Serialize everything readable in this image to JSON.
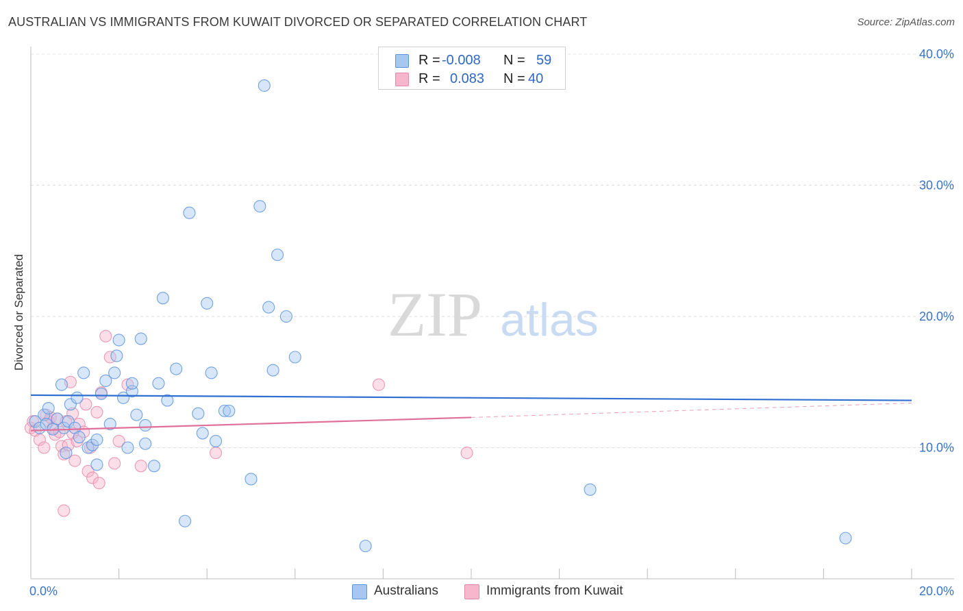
{
  "title": "AUSTRALIAN VS IMMIGRANTS FROM KUWAIT DIVORCED OR SEPARATED CORRELATION CHART",
  "source": "Source: ZipAtlas.com",
  "watermark": {
    "zip": "ZIP",
    "atlas": "atlas"
  },
  "legend": {
    "rows": [
      {
        "r_label": "R = ",
        "r_value": "-0.008",
        "n_label": "N = ",
        "n_value": "59",
        "color": "#a7c7f0"
      },
      {
        "r_label": "R = ",
        "r_value": "0.083",
        "n_label": "N = ",
        "n_value": "40",
        "color": "#f6b6cb"
      }
    ]
  },
  "bottom_legend": [
    {
      "label": "Australians",
      "color": "#a7c7f0"
    },
    {
      "label": "Immigrants from Kuwait",
      "color": "#f6b6cb"
    }
  ],
  "chart_data": {
    "type": "scatter",
    "title": "AUSTRALIAN VS IMMIGRANTS FROM KUWAIT DIVORCED OR SEPARATED CORRELATION CHART",
    "xlabel": "",
    "ylabel": "Divorced or Separated",
    "xlim": [
      0,
      20
    ],
    "ylim": [
      0,
      40
    ],
    "x_tick_labels": [
      "0.0%",
      "20.0%"
    ],
    "y_ticks": [
      10,
      20,
      30,
      40
    ],
    "y_tick_labels": [
      "10.0%",
      "20.0%",
      "30.0%",
      "40.0%"
    ],
    "grid": true,
    "series": [
      {
        "name": "Australians",
        "color": "#5b93de",
        "fill": "#a7c7f0",
        "trend": {
          "x": [
            0,
            20
          ],
          "y": [
            14.0,
            13.6
          ],
          "style": "solid",
          "color": "#2f6fd1"
        },
        "points": [
          [
            0.1,
            12.0
          ],
          [
            0.2,
            11.5
          ],
          [
            0.3,
            12.5
          ],
          [
            0.35,
            11.8
          ],
          [
            0.4,
            13.0
          ],
          [
            0.5,
            11.4
          ],
          [
            0.6,
            12.2
          ],
          [
            0.7,
            14.8
          ],
          [
            0.75,
            11.5
          ],
          [
            0.8,
            9.6
          ],
          [
            0.85,
            12.0
          ],
          [
            0.9,
            13.3
          ],
          [
            1.0,
            11.5
          ],
          [
            1.05,
            13.8
          ],
          [
            1.1,
            10.8
          ],
          [
            1.2,
            15.7
          ],
          [
            1.3,
            10.0
          ],
          [
            1.4,
            10.2
          ],
          [
            1.5,
            8.7
          ],
          [
            1.5,
            10.6
          ],
          [
            1.6,
            14.1
          ],
          [
            1.7,
            15.1
          ],
          [
            1.8,
            11.8
          ],
          [
            1.9,
            15.7
          ],
          [
            1.95,
            17.0
          ],
          [
            2.0,
            18.2
          ],
          [
            2.1,
            13.8
          ],
          [
            2.2,
            10.0
          ],
          [
            2.3,
            14.3
          ],
          [
            2.3,
            14.9
          ],
          [
            2.4,
            12.5
          ],
          [
            2.5,
            18.3
          ],
          [
            2.6,
            10.3
          ],
          [
            2.6,
            11.7
          ],
          [
            2.8,
            8.6
          ],
          [
            2.9,
            14.9
          ],
          [
            3.0,
            21.4
          ],
          [
            3.1,
            13.6
          ],
          [
            3.3,
            16.0
          ],
          [
            3.5,
            4.4
          ],
          [
            3.6,
            27.9
          ],
          [
            3.8,
            12.6
          ],
          [
            3.9,
            11.1
          ],
          [
            4.0,
            21.0
          ],
          [
            4.1,
            15.7
          ],
          [
            4.2,
            10.5
          ],
          [
            4.4,
            12.8
          ],
          [
            4.5,
            12.8
          ],
          [
            5.0,
            7.6
          ],
          [
            5.2,
            28.4
          ],
          [
            5.3,
            37.6
          ],
          [
            5.4,
            20.7
          ],
          [
            5.5,
            15.9
          ],
          [
            5.6,
            24.7
          ],
          [
            5.8,
            20.0
          ],
          [
            6.0,
            16.9
          ],
          [
            7.6,
            2.5
          ],
          [
            12.7,
            6.8
          ],
          [
            18.5,
            3.1
          ]
        ]
      },
      {
        "name": "Immigrants from Kuwait",
        "color": "#e889a8",
        "fill": "#f6b6cb",
        "trend": {
          "x": [
            0,
            10
          ],
          "y": [
            11.3,
            12.3
          ],
          "style": "solid",
          "color": "#e0709a",
          "extension": {
            "x": [
              10,
              20
            ],
            "y": [
              12.3,
              13.4
            ],
            "style": "dashed"
          }
        },
        "points": [
          [
            0.0,
            11.5
          ],
          [
            0.05,
            12.0
          ],
          [
            0.1,
            11.3
          ],
          [
            0.2,
            10.6
          ],
          [
            0.3,
            10.0
          ],
          [
            0.35,
            12.5
          ],
          [
            0.4,
            12.0
          ],
          [
            0.45,
            12.3
          ],
          [
            0.5,
            11.5
          ],
          [
            0.55,
            11.0
          ],
          [
            0.6,
            12.2
          ],
          [
            0.65,
            11.2
          ],
          [
            0.7,
            10.1
          ],
          [
            0.75,
            9.5
          ],
          [
            0.8,
            12.0
          ],
          [
            0.85,
            10.2
          ],
          [
            0.9,
            15.0
          ],
          [
            0.95,
            11.1
          ],
          [
            1.0,
            9.0
          ],
          [
            1.05,
            10.5
          ],
          [
            1.1,
            11.8
          ],
          [
            1.2,
            11.2
          ],
          [
            1.25,
            13.3
          ],
          [
            1.3,
            8.2
          ],
          [
            1.35,
            10.0
          ],
          [
            1.4,
            7.7
          ],
          [
            1.5,
            12.7
          ],
          [
            1.6,
            14.2
          ],
          [
            1.7,
            18.5
          ],
          [
            1.8,
            16.9
          ],
          [
            1.9,
            8.8
          ],
          [
            2.0,
            10.5
          ],
          [
            2.2,
            14.8
          ],
          [
            2.5,
            8.6
          ],
          [
            4.2,
            9.6
          ],
          [
            7.9,
            14.8
          ],
          [
            9.9,
            9.6
          ],
          [
            0.75,
            5.2
          ],
          [
            1.55,
            7.3
          ],
          [
            0.95,
            12.6
          ]
        ]
      }
    ]
  }
}
